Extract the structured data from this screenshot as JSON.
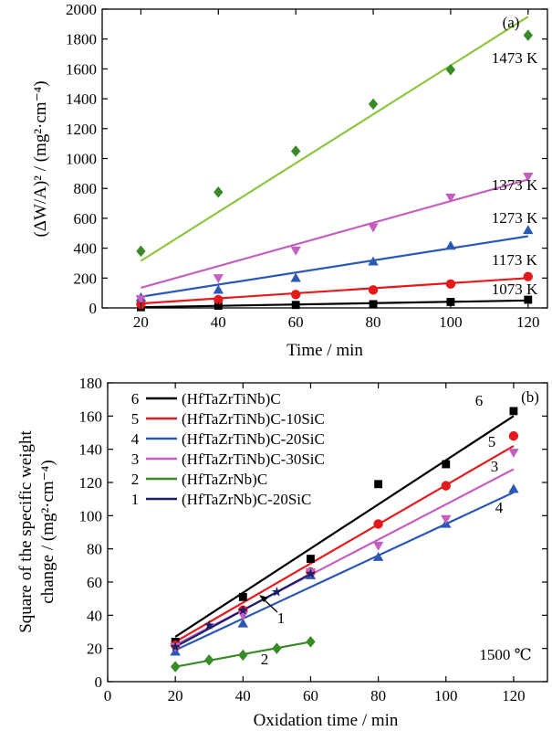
{
  "chart_data": [
    {
      "type": "scatter",
      "panel_label": "(a)",
      "xlabel": "Time / min",
      "ylabel": "(ΔW/A)² / (mg²·cm⁻⁴)",
      "xlim": [
        10,
        125
      ],
      "ylim": [
        0,
        2000
      ],
      "xticks": [
        20,
        40,
        60,
        80,
        100,
        120
      ],
      "yticks": [
        0,
        200,
        400,
        600,
        800,
        1000,
        1200,
        1400,
        1600,
        1800,
        2000
      ],
      "xtick_labels": [
        "20",
        "40",
        "60",
        "80",
        "100",
        "120"
      ],
      "ytick_labels": [
        "0",
        "200",
        "400",
        "600",
        "800",
        "1000",
        "1200",
        "1400",
        "1600",
        "1800",
        "2000"
      ],
      "x": [
        20,
        40,
        60,
        80,
        100,
        120
      ],
      "series": [
        {
          "name": "1073 K",
          "color": "#000000",
          "marker": "square",
          "values": [
            5,
            15,
            20,
            25,
            40,
            55
          ],
          "fit": [
            [
              20,
              5
            ],
            [
              120,
              50
            ]
          ]
        },
        {
          "name": "1173 K",
          "color": "#e31a1c",
          "marker": "circle",
          "values": [
            25,
            55,
            90,
            120,
            160,
            210
          ],
          "fit": [
            [
              20,
              30
            ],
            [
              120,
              200
            ]
          ]
        },
        {
          "name": "1273 K",
          "color": "#2c58b5",
          "marker": "triangle-up",
          "values": [
            70,
            120,
            200,
            310,
            415,
            520
          ],
          "fit": [
            [
              20,
              75
            ],
            [
              120,
              480
            ]
          ]
        },
        {
          "name": "1373 K",
          "color": "#c45fc0",
          "marker": "triangle-down",
          "values": [
            60,
            200,
            385,
            540,
            740,
            880
          ],
          "fit": [
            [
              20,
              135
            ],
            [
              120,
              860
            ]
          ]
        },
        {
          "name": "1473 K",
          "color": "#3a8a28",
          "marker": "diamond",
          "values": [
            380,
            775,
            1050,
            1365,
            1595,
            1825
          ],
          "fit": [
            [
              20,
              315
            ],
            [
              120,
              1950
            ]
          ],
          "fit_color": "#8dc63f"
        }
      ]
    },
    {
      "type": "scatter",
      "panel_label": "(b)",
      "xlabel": "Oxidation time / min",
      "ylabel": "Square of the specific weight change / (mg²·cm⁻⁴)",
      "ylabel_lines": [
        "Square of the specific weight",
        "change / (mg²·cm⁻⁴)"
      ],
      "xlim": [
        0,
        130
      ],
      "ylim": [
        0,
        180
      ],
      "xticks": [
        0,
        20,
        40,
        60,
        80,
        100,
        120
      ],
      "yticks": [
        0,
        20,
        40,
        60,
        80,
        100,
        120,
        140,
        160,
        180
      ],
      "xtick_labels": [
        "0",
        "20",
        "40",
        "60",
        "80",
        "100",
        "120"
      ],
      "ytick_labels": [
        "0",
        "20",
        "40",
        "60",
        "80",
        "100",
        "120",
        "140",
        "160",
        "180"
      ],
      "annotation": "1500 ℃",
      "legend_placement": "top-left",
      "series": [
        {
          "id": "6",
          "name": "(HfTaZrTiNb)C",
          "color": "#000000",
          "marker": "square",
          "x": [
            20,
            40,
            60,
            80,
            100,
            120
          ],
          "values": [
            24,
            51,
            74,
            119,
            131,
            163
          ],
          "fit": [
            [
              20,
              27
            ],
            [
              120,
              160
            ]
          ]
        },
        {
          "id": "5",
          "name": "(HfTaZrTiNb)C-10SiC",
          "color": "#e31a1c",
          "marker": "circle",
          "x": [
            20,
            40,
            60,
            80,
            100,
            120
          ],
          "values": [
            22,
            43,
            66,
            95,
            118,
            148
          ],
          "fit": [
            [
              20,
              24
            ],
            [
              120,
              142
            ]
          ]
        },
        {
          "id": "4",
          "name": "(HfTaZrTiNb)C-20SiC",
          "color": "#2c58b5",
          "marker": "triangle-up",
          "x": [
            20,
            40,
            60,
            80,
            100,
            120
          ],
          "values": [
            18,
            35,
            64,
            75,
            95,
            116
          ],
          "fit": [
            [
              20,
              19
            ],
            [
              120,
              114
            ]
          ]
        },
        {
          "id": "3",
          "name": "(HfTaZrTiNb)C-30SiC",
          "color": "#c45fc0",
          "marker": "triangle-down",
          "x": [
            20,
            40,
            60,
            80,
            100,
            120
          ],
          "values": [
            21,
            40,
            66,
            82,
            98,
            138
          ],
          "fit": [
            [
              20,
              22
            ],
            [
              120,
              128
            ]
          ]
        },
        {
          "id": "2",
          "name": "(HfTaZrNb)C",
          "color": "#3a8a28",
          "marker": "diamond",
          "x": [
            20,
            30,
            40,
            50,
            60
          ],
          "values": [
            9,
            13,
            16,
            20,
            24
          ],
          "fit": [
            [
              20,
              9
            ],
            [
              60,
              24
            ]
          ]
        },
        {
          "id": "1",
          "name": "(HfTaZrNb)C-20SiC",
          "color": "#1b1f6b",
          "marker": "star",
          "x": [
            20,
            30,
            40,
            50,
            60
          ],
          "values": [
            21,
            34,
            43,
            54,
            65
          ],
          "fit": [
            [
              20,
              21
            ],
            [
              60,
              65
            ]
          ]
        }
      ],
      "curve_labels": [
        "6",
        "5",
        "3",
        "4",
        "1",
        "2"
      ]
    }
  ]
}
